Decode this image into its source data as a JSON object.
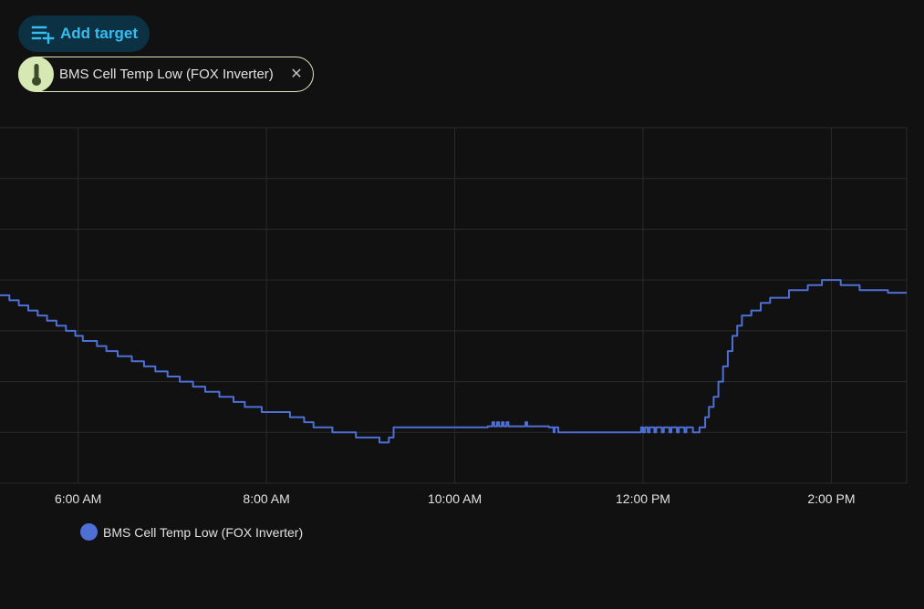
{
  "toolbar": {
    "add_target_label": "Add target",
    "add_target_icon": "playlist-plus-icon"
  },
  "target_chip": {
    "label": "BMS Cell Temp Low (FOX Inverter)",
    "icon": "thermometer-icon",
    "close_icon": "close-icon"
  },
  "colors": {
    "accent": "#35bdf2",
    "series": "#4e6fd6",
    "grid": "#2b2b2b",
    "background": "#111111"
  },
  "chart_data": {
    "type": "line",
    "x_ticks": [
      "6:00 AM",
      "8:00 AM",
      "10:00 AM",
      "12:00 PM",
      "2:00 PM"
    ],
    "x_tick_hours": [
      6,
      8,
      10,
      12,
      14
    ],
    "xlim": [
      5.17,
      14.8
    ],
    "ylim": [
      0,
      7
    ],
    "grid": true,
    "legend_position": "bottom-left",
    "series": [
      {
        "name": "BMS Cell Temp Low (FOX Inverter)",
        "step": true,
        "points": [
          [
            5.17,
            3.7
          ],
          [
            5.27,
            3.6
          ],
          [
            5.37,
            3.5
          ],
          [
            5.47,
            3.4
          ],
          [
            5.57,
            3.3
          ],
          [
            5.67,
            3.2
          ],
          [
            5.77,
            3.1
          ],
          [
            5.87,
            3.0
          ],
          [
            5.97,
            2.9
          ],
          [
            6.05,
            2.8
          ],
          [
            6.2,
            2.7
          ],
          [
            6.3,
            2.6
          ],
          [
            6.42,
            2.5
          ],
          [
            6.57,
            2.4
          ],
          [
            6.7,
            2.3
          ],
          [
            6.82,
            2.2
          ],
          [
            6.95,
            2.1
          ],
          [
            7.08,
            2.0
          ],
          [
            7.22,
            1.9
          ],
          [
            7.35,
            1.8
          ],
          [
            7.5,
            1.7
          ],
          [
            7.65,
            1.6
          ],
          [
            7.77,
            1.5
          ],
          [
            7.95,
            1.4
          ],
          [
            8.25,
            1.3
          ],
          [
            8.4,
            1.2
          ],
          [
            8.5,
            1.1
          ],
          [
            8.7,
            1.0
          ],
          [
            8.95,
            0.9
          ],
          [
            9.2,
            0.8
          ],
          [
            9.3,
            0.9
          ],
          [
            9.35,
            1.1
          ],
          [
            10.35,
            1.12
          ],
          [
            10.4,
            1.2
          ],
          [
            10.42,
            1.12
          ],
          [
            10.45,
            1.2
          ],
          [
            10.47,
            1.12
          ],
          [
            10.5,
            1.2
          ],
          [
            10.52,
            1.12
          ],
          [
            10.55,
            1.2
          ],
          [
            10.57,
            1.12
          ],
          [
            10.75,
            1.2
          ],
          [
            10.77,
            1.12
          ],
          [
            11.0,
            1.1
          ],
          [
            11.05,
            1.0
          ],
          [
            11.06,
            1.1
          ],
          [
            11.1,
            1.0
          ],
          [
            11.98,
            1.1
          ],
          [
            12.0,
            1.0
          ],
          [
            12.02,
            1.1
          ],
          [
            12.05,
            1.0
          ],
          [
            12.07,
            1.1
          ],
          [
            12.12,
            1.0
          ],
          [
            12.14,
            1.1
          ],
          [
            12.2,
            1.0
          ],
          [
            12.22,
            1.1
          ],
          [
            12.28,
            1.0
          ],
          [
            12.3,
            1.1
          ],
          [
            12.36,
            1.0
          ],
          [
            12.38,
            1.1
          ],
          [
            12.44,
            1.0
          ],
          [
            12.46,
            1.1
          ],
          [
            12.53,
            1.0
          ],
          [
            12.6,
            1.1
          ],
          [
            12.66,
            1.3
          ],
          [
            12.7,
            1.5
          ],
          [
            12.75,
            1.7
          ],
          [
            12.8,
            2.0
          ],
          [
            12.85,
            2.3
          ],
          [
            12.9,
            2.6
          ],
          [
            12.95,
            2.9
          ],
          [
            13.0,
            3.1
          ],
          [
            13.05,
            3.3
          ],
          [
            13.15,
            3.4
          ],
          [
            13.25,
            3.55
          ],
          [
            13.35,
            3.65
          ],
          [
            13.55,
            3.8
          ],
          [
            13.75,
            3.9
          ],
          [
            13.9,
            4.0
          ],
          [
            14.1,
            3.9
          ],
          [
            14.3,
            3.8
          ],
          [
            14.6,
            3.75
          ],
          [
            14.8,
            3.75
          ]
        ]
      }
    ]
  }
}
